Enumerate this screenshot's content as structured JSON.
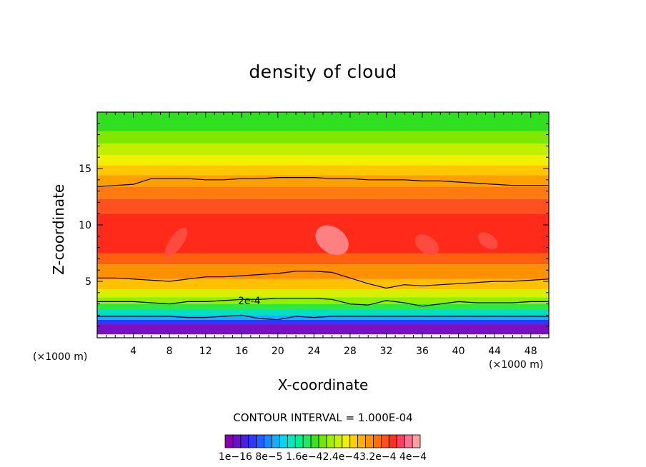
{
  "chart_data": {
    "type": "heatmap",
    "title": "density of cloud",
    "xlabel": "X-coordinate",
    "ylabel": "Z-coordinate",
    "x_unit_label": "(×1000 m)",
    "x_unit_label_right": "(×1000 m)",
    "xlim": [
      0,
      50
    ],
    "ylim": [
      0,
      20
    ],
    "x_ticks": [
      "4",
      "8",
      "12",
      "16",
      "20",
      "24",
      "28",
      "32",
      "36",
      "40",
      "44",
      "48"
    ],
    "y_ticks": [
      "5",
      "10",
      "15"
    ],
    "contour_interval_text": "CONTOUR INTERVAL = 1.000E-04",
    "contour_label": "2e-4",
    "colorbar_labels": [
      "1e-16",
      "8e-5",
      "1.6e-4",
      "2.4e-4",
      "3.2e-4",
      "4e-4"
    ],
    "colorbar_label_text": "1e−16 8e−5 1.6e−42.4e−43.2e−4 4e−4",
    "colorbar_colors": [
      "#8a00b0",
      "#6a10c8",
      "#4a20e0",
      "#2b38ff",
      "#2060ff",
      "#1a88ff",
      "#10b0ff",
      "#00d8f0",
      "#00e8c0",
      "#00f090",
      "#20e860",
      "#40e020",
      "#70e800",
      "#a0f000",
      "#c8f000",
      "#f0f000",
      "#ffd000",
      "#ffb000",
      "#ff9000",
      "#ff7000",
      "#ff5020",
      "#ff3020",
      "#ff4060",
      "#ff7090",
      "#ffa0a0"
    ],
    "layers": [
      {
        "z_bottom": 0.3,
        "z_top": 1.2,
        "value": 5e-06,
        "color": "#7a10c0"
      },
      {
        "z_bottom": 1.2,
        "z_top": 1.6,
        "value": 4e-05,
        "color": "#2b38ff"
      },
      {
        "z_bottom": 1.6,
        "z_top": 2.0,
        "value": 8e-05,
        "color": "#10b0ff"
      },
      {
        "z_bottom": 2.0,
        "z_top": 2.5,
        "value": 0.00012,
        "color": "#00e0c0"
      },
      {
        "z_bottom": 2.5,
        "z_top": 3.0,
        "value": 0.00016,
        "color": "#30e840"
      },
      {
        "z_bottom": 3.0,
        "z_top": 3.6,
        "value": 0.00019,
        "color": "#90f000"
      },
      {
        "z_bottom": 3.6,
        "z_top": 4.3,
        "value": 0.00022,
        "color": "#d8f000"
      },
      {
        "z_bottom": 4.3,
        "z_top": 5.2,
        "value": 0.00026,
        "color": "#ffc000"
      },
      {
        "z_bottom": 5.2,
        "z_top": 6.5,
        "value": 0.0003,
        "color": "#ff9000"
      },
      {
        "z_bottom": 6.5,
        "z_top": 7.5,
        "value": 0.00033,
        "color": "#ff6010"
      },
      {
        "z_bottom": 7.5,
        "z_top": 11.0,
        "value": 0.00036,
        "color": "#ff2a1a"
      },
      {
        "z_bottom": 11.0,
        "z_top": 12.3,
        "value": 0.00033,
        "color": "#ff5020"
      },
      {
        "z_bottom": 12.3,
        "z_top": 13.4,
        "value": 0.0003,
        "color": "#ff7a10"
      },
      {
        "z_bottom": 13.4,
        "z_top": 14.4,
        "value": 0.00027,
        "color": "#ffa000"
      },
      {
        "z_bottom": 14.4,
        "z_top": 15.3,
        "value": 0.00025,
        "color": "#ffc800"
      },
      {
        "z_bottom": 15.3,
        "z_top": 16.2,
        "value": 0.00022,
        "color": "#f0f000"
      },
      {
        "z_bottom": 16.2,
        "z_top": 17.2,
        "value": 0.00019,
        "color": "#c0f000"
      },
      {
        "z_bottom": 17.2,
        "z_top": 18.3,
        "value": 0.00016,
        "color": "#80e800"
      },
      {
        "z_bottom": 18.3,
        "z_top": 20.0,
        "value": 0.00013,
        "color": "#30e020"
      }
    ],
    "max_patches": [
      {
        "x": [
          24,
          28
        ],
        "z": [
          7.5,
          9.8
        ],
        "color": "#ff8080"
      },
      {
        "x": [
          8,
          9.5
        ],
        "z": [
          7.0,
          10.0
        ],
        "color": "#ff4a40"
      },
      {
        "x": [
          35,
          38
        ],
        "z": [
          7.5,
          9.0
        ],
        "color": "#ff4a40"
      },
      {
        "x": [
          42,
          44.5
        ],
        "z": [
          8.0,
          9.2
        ],
        "color": "#ff4a40"
      }
    ],
    "contour_lines": [
      {
        "level": "1e-4",
        "z": [
          1.9,
          1.9,
          1.9,
          1.9,
          1.9,
          1.8,
          1.8,
          1.9,
          2.0,
          1.7,
          1.6,
          1.9,
          1.8,
          1.9,
          1.9,
          1.9,
          1.9,
          1.9,
          1.9,
          1.9,
          1.9,
          1.9,
          1.9,
          1.9,
          1.9,
          1.9
        ]
      },
      {
        "level": "2e-4",
        "z": [
          3.2,
          3.2,
          3.2,
          3.1,
          3.0,
          3.2,
          3.2,
          3.3,
          3.4,
          3.4,
          3.5,
          3.5,
          3.5,
          3.4,
          3.0,
          2.9,
          3.3,
          3.1,
          2.8,
          3.0,
          3.2,
          3.1,
          3.1,
          3.1,
          3.2,
          3.2
        ]
      },
      {
        "level": "3e-4",
        "z": [
          5.3,
          5.3,
          5.2,
          5.1,
          5.0,
          5.2,
          5.4,
          5.4,
          5.5,
          5.6,
          5.7,
          5.9,
          5.9,
          5.8,
          5.3,
          4.8,
          4.4,
          4.7,
          4.6,
          4.7,
          4.8,
          4.9,
          5.0,
          5.0,
          5.1,
          5.2
        ]
      },
      {
        "level": "3e-4",
        "z": [
          13.4,
          13.5,
          13.6,
          14.1,
          14.1,
          14.1,
          14.0,
          14.0,
          14.1,
          14.1,
          14.2,
          14.2,
          14.2,
          14.1,
          14.1,
          14.0,
          14.0,
          14.0,
          13.9,
          13.9,
          13.8,
          13.7,
          13.6,
          13.5,
          13.5,
          13.5
        ]
      }
    ]
  }
}
